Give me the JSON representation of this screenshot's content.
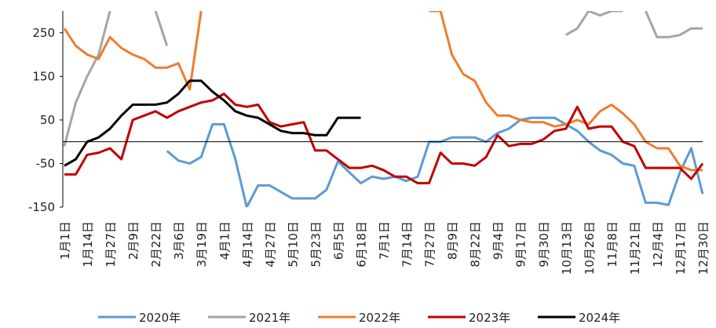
{
  "chart_data": {
    "type": "line",
    "categories": [
      "1月1日",
      null,
      "1月14日",
      null,
      "1月27日",
      null,
      "2月9日",
      null,
      "2月22日",
      null,
      "3月6日",
      null,
      "3月19日",
      null,
      "4月1日",
      null,
      "4月14日",
      null,
      "4月27日",
      null,
      "5月10日",
      null,
      "5月23日",
      null,
      "6月5日",
      null,
      "6月18日",
      null,
      "7月1日",
      null,
      "7月14日",
      null,
      "7月27日",
      null,
      "8月9日",
      null,
      "8月22日",
      null,
      "9月4日",
      null,
      "9月17日",
      null,
      "9月30日",
      null,
      "10月13日",
      null,
      "10月26日",
      null,
      "11月8日",
      null,
      "11月21日",
      null,
      "12月4日",
      null,
      "12月17日",
      null,
      "12月30日"
    ],
    "ylim": [
      -150,
      300
    ],
    "yticks": [
      -150,
      -50,
      50,
      150,
      250
    ],
    "series": [
      {
        "name": "2020年",
        "color": "#5b9bd5",
        "values": [
          null,
          null,
          null,
          null,
          null,
          null,
          null,
          null,
          null,
          -21,
          -43,
          -50,
          -35,
          40,
          40,
          -40,
          -150,
          -100,
          -100,
          -115,
          -130,
          -130,
          -130,
          -110,
          -45,
          -70,
          -95,
          -80,
          -85,
          -80,
          -90,
          -80,
          0,
          0,
          10,
          10,
          10,
          0,
          20,
          30,
          50,
          55,
          55,
          55,
          40,
          25,
          0,
          -20,
          -30,
          -50,
          -55,
          -140,
          -140,
          -145,
          -70,
          -15,
          -120
        ]
      },
      {
        "name": "2021年",
        "color": "#a5a5a5",
        "values": [
          -10,
          90,
          150,
          200,
          300,
          null,
          null,
          null,
          300,
          220,
          null,
          null,
          null,
          null,
          null,
          null,
          null,
          null,
          null,
          null,
          null,
          null,
          null,
          null,
          null,
          null,
          null,
          null,
          null,
          null,
          null,
          null,
          null,
          null,
          null,
          null,
          null,
          null,
          null,
          null,
          null,
          null,
          null,
          null,
          245,
          260,
          300,
          290,
          300,
          300,
          null,
          300,
          240,
          240,
          245,
          260,
          260
        ]
      },
      {
        "name": "2022年",
        "color": "#ed7d31",
        "values": [
          260,
          220,
          200,
          190,
          240,
          215,
          200,
          190,
          170,
          170,
          180,
          120,
          300,
          null,
          null,
          null,
          null,
          null,
          null,
          null,
          null,
          null,
          null,
          null,
          null,
          null,
          null,
          null,
          null,
          null,
          null,
          null,
          300,
          300,
          200,
          155,
          140,
          90,
          60,
          60,
          50,
          45,
          45,
          35,
          40,
          50,
          40,
          70,
          85,
          65,
          40,
          0,
          -15,
          -15,
          -55,
          -65,
          -65
        ]
      },
      {
        "name": "2023年",
        "color": "#c00000",
        "values": [
          -75,
          -75,
          -30,
          -25,
          -15,
          -40,
          50,
          60,
          70,
          55,
          70,
          80,
          90,
          95,
          110,
          85,
          80,
          85,
          45,
          35,
          40,
          45,
          -20,
          -20,
          -40,
          -60,
          -60,
          -55,
          -65,
          -80,
          -80,
          -95,
          -95,
          -25,
          -50,
          -50,
          -55,
          -35,
          15,
          -10,
          -5,
          -5,
          5,
          25,
          30,
          80,
          30,
          35,
          35,
          0,
          -10,
          -60,
          -60,
          -60,
          -60,
          -85,
          -50
        ]
      },
      {
        "name": "2024年",
        "color": "#000000",
        "values": [
          -55,
          -40,
          0,
          10,
          30,
          60,
          85,
          85,
          85,
          90,
          110,
          140,
          140,
          115,
          95,
          70,
          60,
          55,
          40,
          25,
          20,
          20,
          15,
          15,
          55,
          55,
          55,
          null,
          null,
          null,
          null,
          null,
          null,
          null,
          null,
          null,
          null,
          null,
          null,
          null,
          null,
          null,
          null,
          null,
          null,
          null,
          null,
          null,
          null,
          null,
          null,
          null,
          null,
          null,
          null,
          null,
          null
        ]
      }
    ]
  }
}
